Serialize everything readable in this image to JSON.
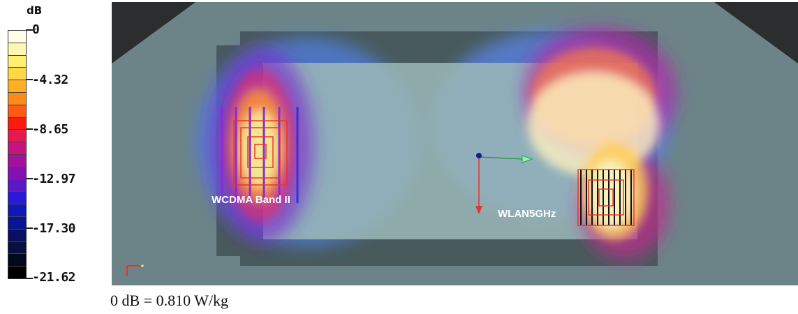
{
  "legend": {
    "unit": "dB",
    "ticks": [
      "0",
      "-4.32",
      "-8.65",
      "-12.97",
      "-17.30",
      "-21.62"
    ],
    "swatches": [
      "#fffee8",
      "#fff8b0",
      "#fff070",
      "#ffd848",
      "#ffb020",
      "#ff8a1a",
      "#ff5a14",
      "#ff1a10",
      "#e61a4c",
      "#c8147e",
      "#a6109e",
      "#8412b0",
      "#5a18c6",
      "#2a1ad8",
      "#1018b8",
      "#0a1690",
      "#0a1060",
      "#081040",
      "#04081e",
      "#000000"
    ]
  },
  "map": {
    "labels": {
      "left_antenna": "WCDMA Band II",
      "right_antenna": "WLAN5GHz"
    },
    "colors": {
      "background": "#2b2d2e",
      "phantom": "#6c8488",
      "plate_dark": "#485a5c",
      "plate_light": "#9bb8b9"
    }
  },
  "reference": "0 dB = 0.810 W/kg"
}
